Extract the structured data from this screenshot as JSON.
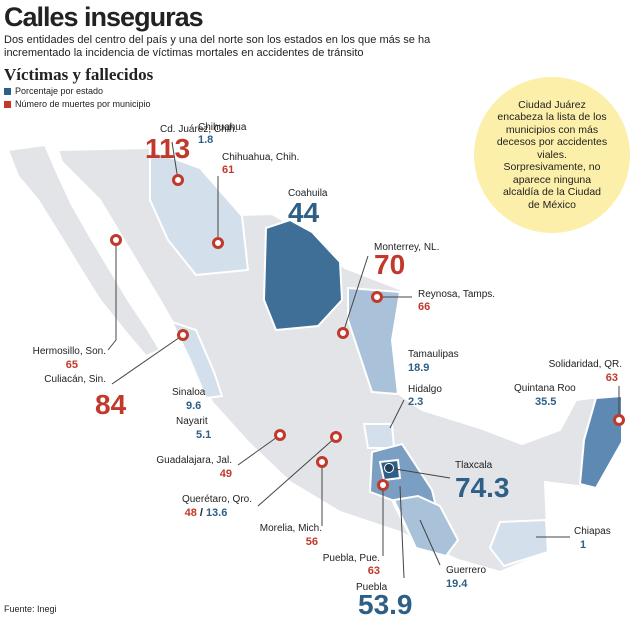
{
  "header": {
    "title": "Calles inseguras",
    "subtitle": "Dos entidades del centro del país y una del norte son los estados en los que más se ha incrementado la incidencia de víctimas mortales en accidentes de tránsito"
  },
  "section_title": "Víctimas y fallecidos",
  "legend": [
    {
      "label": "Porcentaje por estado",
      "color": "#2e5f86"
    },
    {
      "label": "Número de muertes por municipio",
      "color": "#c0392b"
    }
  ],
  "callout": "Ciudad Juárez encabeza la lista de los municipios con más decesos por accidentes viales. Sorpresivamente, no aparece ninguna alcaldía de la Ciudad de México",
  "states": [
    {
      "name": "Chihuahua",
      "value": 1.8
    },
    {
      "name": "Coahuila",
      "value": 44
    },
    {
      "name": "Tamaulipas",
      "value": 18.9
    },
    {
      "name": "Sinaloa",
      "value": 9.6
    },
    {
      "name": "Nayarit",
      "value": 5.1
    },
    {
      "name": "Hidalgo",
      "value": 2.3
    },
    {
      "name": "Tlaxcala",
      "value": 74.3
    },
    {
      "name": "Quintana Roo",
      "value": 35.5
    },
    {
      "name": "Chiapas",
      "value": 1
    },
    {
      "name": "Guerrero",
      "value": 19.4
    },
    {
      "name": "Puebla",
      "value": 53.9
    }
  ],
  "municipalities": [
    {
      "name": "Cd. Juárez, Chih.",
      "value": 113
    },
    {
      "name": "Chihuahua, Chih.",
      "value": 61
    },
    {
      "name": "Monterrey, NL.",
      "value": 70
    },
    {
      "name": "Reynosa, Tamps.",
      "value": 66
    },
    {
      "name": "Hermosillo, Son.",
      "value": 65
    },
    {
      "name": "Culiacán, Sin.",
      "value": 84
    },
    {
      "name": "Guadalajara, Jal.",
      "value": 49
    },
    {
      "name": "Querétaro, Qro.",
      "value": 48,
      "separator": "/",
      "state_value": 13.6
    },
    {
      "name": "Morelia, Mich.",
      "value": 56
    },
    {
      "name": "Puebla, Pue.",
      "value": 63
    },
    {
      "name": "Solidaridad, QR.",
      "value": 63
    }
  ],
  "source": "Fuente: Inegi"
}
